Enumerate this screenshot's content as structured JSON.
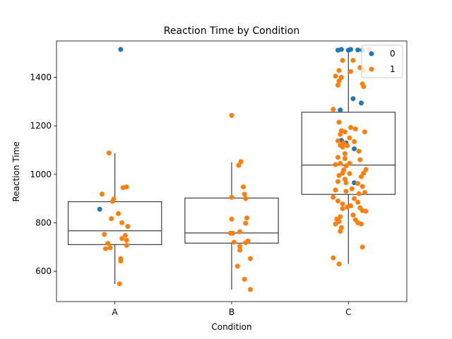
{
  "chart_data": {
    "type": "box+strip",
    "title": "Reaction Time by Condition",
    "xlabel": "Condition",
    "ylabel": "Reaction Time",
    "categories": [
      "A",
      "B",
      "C"
    ],
    "ylim": [
      475,
      1550
    ],
    "yticks": [
      600,
      800,
      1000,
      1200,
      1400
    ],
    "grid": false,
    "legend": {
      "position": "upper-right",
      "entries": [
        {
          "name": "0",
          "color": "#1f77b4"
        },
        {
          "name": "1",
          "color": "#ff7f0e"
        }
      ]
    },
    "boxes": [
      {
        "category": "A",
        "whislo": 548,
        "q1": 710,
        "median": 767,
        "q3": 887,
        "whishi": 1088
      },
      {
        "category": "B",
        "whislo": 525,
        "q1": 716,
        "median": 758,
        "q3": 902,
        "whishi": 1050
      },
      {
        "category": "C",
        "whislo": 630,
        "q1": 917,
        "median": 1038,
        "q3": 1256,
        "whishi": 1512
      }
    ],
    "series": [
      {
        "name": "0",
        "color": "#1f77b4",
        "points": [
          {
            "x": "A",
            "jitter": 0.05,
            "y": 1515
          },
          {
            "x": "A",
            "jitter": -0.13,
            "y": 856
          },
          {
            "x": "C",
            "jitter": -0.09,
            "y": 1512
          },
          {
            "x": "C",
            "jitter": -0.06,
            "y": 1515
          },
          {
            "x": "C",
            "jitter": 0.0,
            "y": 1512
          },
          {
            "x": "C",
            "jitter": 0.02,
            "y": 1515
          },
          {
            "x": "C",
            "jitter": 0.08,
            "y": 1513
          },
          {
            "x": "C",
            "jitter": 0.12,
            "y": 1512
          },
          {
            "x": "C",
            "jitter": 0.04,
            "y": 1312
          },
          {
            "x": "C",
            "jitter": 0.11,
            "y": 1294
          },
          {
            "x": "C",
            "jitter": -0.07,
            "y": 1265
          },
          {
            "x": "C",
            "jitter": -0.06,
            "y": 1140
          },
          {
            "x": "C",
            "jitter": 0.05,
            "y": 1105
          },
          {
            "x": "C",
            "jitter": -0.02,
            "y": 1130
          },
          {
            "x": "C",
            "jitter": 0.05,
            "y": 965
          }
        ]
      },
      {
        "name": "1",
        "color": "#ff7f0e",
        "points": [
          {
            "x": "A",
            "jitter": -0.05,
            "y": 1088
          },
          {
            "x": "A",
            "jitter": 0.07,
            "y": 945
          },
          {
            "x": "A",
            "jitter": 0.1,
            "y": 948
          },
          {
            "x": "A",
            "jitter": -0.11,
            "y": 918
          },
          {
            "x": "A",
            "jitter": -0.01,
            "y": 898
          },
          {
            "x": "A",
            "jitter": -0.02,
            "y": 888
          },
          {
            "x": "A",
            "jitter": 0.03,
            "y": 838
          },
          {
            "x": "A",
            "jitter": -0.03,
            "y": 817
          },
          {
            "x": "A",
            "jitter": 0.06,
            "y": 800
          },
          {
            "x": "A",
            "jitter": 0.11,
            "y": 785
          },
          {
            "x": "A",
            "jitter": -0.09,
            "y": 752
          },
          {
            "x": "A",
            "jitter": 0.09,
            "y": 748
          },
          {
            "x": "A",
            "jitter": 0.06,
            "y": 735
          },
          {
            "x": "A",
            "jitter": 0.1,
            "y": 728
          },
          {
            "x": "A",
            "jitter": -0.06,
            "y": 715
          },
          {
            "x": "A",
            "jitter": 0.1,
            "y": 707
          },
          {
            "x": "A",
            "jitter": -0.04,
            "y": 697
          },
          {
            "x": "A",
            "jitter": -0.08,
            "y": 693
          },
          {
            "x": "A",
            "jitter": 0.05,
            "y": 652
          },
          {
            "x": "A",
            "jitter": 0.05,
            "y": 642
          },
          {
            "x": "A",
            "jitter": 0.04,
            "y": 548
          },
          {
            "x": "B",
            "jitter": 0.0,
            "y": 1243
          },
          {
            "x": "B",
            "jitter": 0.08,
            "y": 1052
          },
          {
            "x": "B",
            "jitter": 0.06,
            "y": 1037
          },
          {
            "x": "B",
            "jitter": 0.1,
            "y": 948
          },
          {
            "x": "B",
            "jitter": 0.0,
            "y": 905
          },
          {
            "x": "B",
            "jitter": 0.11,
            "y": 918
          },
          {
            "x": "B",
            "jitter": 0.12,
            "y": 900
          },
          {
            "x": "B",
            "jitter": 0.13,
            "y": 820
          },
          {
            "x": "B",
            "jitter": 0.0,
            "y": 815
          },
          {
            "x": "B",
            "jitter": 0.12,
            "y": 798
          },
          {
            "x": "B",
            "jitter": 0.07,
            "y": 763
          },
          {
            "x": "B",
            "jitter": -0.01,
            "y": 757
          },
          {
            "x": "B",
            "jitter": 0.01,
            "y": 757
          },
          {
            "x": "B",
            "jitter": 0.02,
            "y": 720
          },
          {
            "x": "B",
            "jitter": 0.12,
            "y": 718
          },
          {
            "x": "B",
            "jitter": 0.14,
            "y": 725
          },
          {
            "x": "B",
            "jitter": 0.07,
            "y": 703
          },
          {
            "x": "B",
            "jitter": 0.07,
            "y": 687
          },
          {
            "x": "B",
            "jitter": 0.16,
            "y": 652
          },
          {
            "x": "B",
            "jitter": 0.05,
            "y": 621
          },
          {
            "x": "B",
            "jitter": 0.11,
            "y": 567
          },
          {
            "x": "B",
            "jitter": 0.16,
            "y": 525
          },
          {
            "x": "C",
            "jitter": 0.18,
            "y": 1515
          },
          {
            "x": "C",
            "jitter": -0.05,
            "y": 1470
          },
          {
            "x": "C",
            "jitter": 0.04,
            "y": 1470
          },
          {
            "x": "C",
            "jitter": 0.1,
            "y": 1440
          },
          {
            "x": "C",
            "jitter": -0.08,
            "y": 1428
          },
          {
            "x": "C",
            "jitter": 0.02,
            "y": 1424
          },
          {
            "x": "C",
            "jitter": 0.13,
            "y": 1430
          },
          {
            "x": "C",
            "jitter": -0.11,
            "y": 1405
          },
          {
            "x": "C",
            "jitter": -0.06,
            "y": 1400
          },
          {
            "x": "C",
            "jitter": -0.08,
            "y": 1385
          },
          {
            "x": "C",
            "jitter": -0.09,
            "y": 1368
          },
          {
            "x": "C",
            "jitter": 0.12,
            "y": 1373
          },
          {
            "x": "C",
            "jitter": 0.13,
            "y": 1362
          },
          {
            "x": "C",
            "jitter": -0.13,
            "y": 1268
          },
          {
            "x": "C",
            "jitter": -0.08,
            "y": 1215
          },
          {
            "x": "C",
            "jitter": 0.02,
            "y": 1193
          },
          {
            "x": "C",
            "jitter": 0.06,
            "y": 1187
          },
          {
            "x": "C",
            "jitter": -0.06,
            "y": 1180
          },
          {
            "x": "C",
            "jitter": -0.03,
            "y": 1175
          },
          {
            "x": "C",
            "jitter": 0.14,
            "y": 1175
          },
          {
            "x": "C",
            "jitter": -0.07,
            "y": 1165
          },
          {
            "x": "C",
            "jitter": 0.01,
            "y": 1150
          },
          {
            "x": "C",
            "jitter": -0.09,
            "y": 1138
          },
          {
            "x": "C",
            "jitter": -0.04,
            "y": 1130
          },
          {
            "x": "C",
            "jitter": 0.05,
            "y": 1135
          },
          {
            "x": "C",
            "jitter": -0.07,
            "y": 1120
          },
          {
            "x": "C",
            "jitter": -0.01,
            "y": 1118
          },
          {
            "x": "C",
            "jitter": -0.05,
            "y": 1112
          },
          {
            "x": "C",
            "jitter": 0.09,
            "y": 1095
          },
          {
            "x": "C",
            "jitter": -0.03,
            "y": 1085
          },
          {
            "x": "C",
            "jitter": -0.09,
            "y": 1070
          },
          {
            "x": "C",
            "jitter": -0.03,
            "y": 1065
          },
          {
            "x": "C",
            "jitter": 0.1,
            "y": 1060
          },
          {
            "x": "C",
            "jitter": -0.07,
            "y": 1045
          },
          {
            "x": "C",
            "jitter": 0.01,
            "y": 1045
          },
          {
            "x": "C",
            "jitter": -0.11,
            "y": 1040
          },
          {
            "x": "C",
            "jitter": -0.02,
            "y": 1035
          },
          {
            "x": "C",
            "jitter": -0.04,
            "y": 1018
          },
          {
            "x": "C",
            "jitter": 0.15,
            "y": 1020
          },
          {
            "x": "C",
            "jitter": -0.05,
            "y": 1005
          },
          {
            "x": "C",
            "jitter": 0.01,
            "y": 1003
          },
          {
            "x": "C",
            "jitter": 0.13,
            "y": 1005
          },
          {
            "x": "C",
            "jitter": -0.08,
            "y": 995
          },
          {
            "x": "C",
            "jitter": 0.11,
            "y": 990
          },
          {
            "x": "C",
            "jitter": -0.03,
            "y": 980
          },
          {
            "x": "C",
            "jitter": -0.09,
            "y": 970
          },
          {
            "x": "C",
            "jitter": -0.02,
            "y": 965
          },
          {
            "x": "C",
            "jitter": 0.08,
            "y": 962
          },
          {
            "x": "C",
            "jitter": 0.12,
            "y": 950
          },
          {
            "x": "C",
            "jitter": 0.03,
            "y": 940
          },
          {
            "x": "C",
            "jitter": -0.11,
            "y": 935
          },
          {
            "x": "C",
            "jitter": -0.02,
            "y": 930
          },
          {
            "x": "C",
            "jitter": 0.14,
            "y": 925
          },
          {
            "x": "C",
            "jitter": 0.09,
            "y": 920
          },
          {
            "x": "C",
            "jitter": -0.13,
            "y": 905
          },
          {
            "x": "C",
            "jitter": 0.05,
            "y": 900
          },
          {
            "x": "C",
            "jitter": -0.09,
            "y": 890
          },
          {
            "x": "C",
            "jitter": 0.08,
            "y": 885
          },
          {
            "x": "C",
            "jitter": -0.05,
            "y": 878
          },
          {
            "x": "C",
            "jitter": 0.02,
            "y": 870
          },
          {
            "x": "C",
            "jitter": -0.01,
            "y": 865
          },
          {
            "x": "C",
            "jitter": 0.1,
            "y": 862
          },
          {
            "x": "C",
            "jitter": -0.05,
            "y": 858
          },
          {
            "x": "C",
            "jitter": 0.12,
            "y": 850
          },
          {
            "x": "C",
            "jitter": 0.15,
            "y": 848
          },
          {
            "x": "C",
            "jitter": 0.04,
            "y": 832
          },
          {
            "x": "C",
            "jitter": -0.07,
            "y": 825
          },
          {
            "x": "C",
            "jitter": -0.1,
            "y": 815
          },
          {
            "x": "C",
            "jitter": 0.06,
            "y": 812
          },
          {
            "x": "C",
            "jitter": -0.08,
            "y": 805
          },
          {
            "x": "C",
            "jitter": 0.08,
            "y": 800
          },
          {
            "x": "C",
            "jitter": -0.11,
            "y": 795
          },
          {
            "x": "C",
            "jitter": 0.11,
            "y": 795
          },
          {
            "x": "C",
            "jitter": -0.06,
            "y": 780
          },
          {
            "x": "C",
            "jitter": -0.07,
            "y": 765
          },
          {
            "x": "C",
            "jitter": 0.12,
            "y": 700
          },
          {
            "x": "C",
            "jitter": -0.13,
            "y": 655
          },
          {
            "x": "C",
            "jitter": -0.08,
            "y": 630
          }
        ]
      }
    ]
  }
}
